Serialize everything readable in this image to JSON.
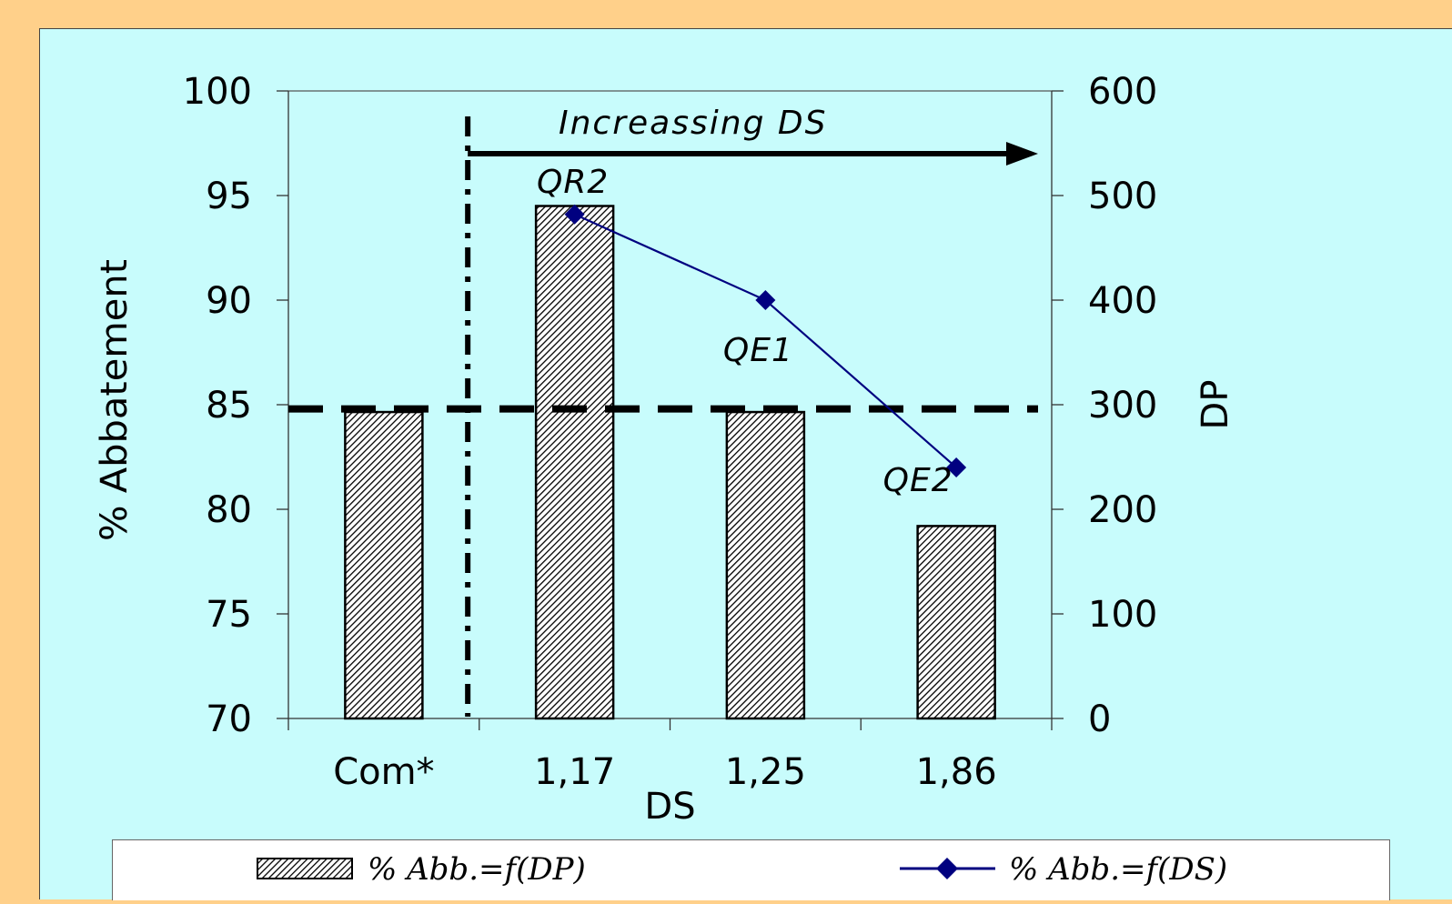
{
  "chart_data": {
    "type": "bar",
    "categories": [
      "Com*",
      "1,17",
      "1,25",
      "1,86"
    ],
    "xlabel": "DS",
    "ylabel": "% Abbatement",
    "y2label": "DP",
    "ylim": [
      70,
      100
    ],
    "yticks": [
      "70",
      "75",
      "80",
      "85",
      "90",
      "95",
      "100"
    ],
    "y2lim": [
      0,
      600
    ],
    "y2ticks": [
      "0",
      "100",
      "200",
      "300",
      "400",
      "500",
      "600"
    ],
    "series": [
      {
        "name": "% Abb.=f(DP)",
        "type": "bar",
        "axis": "right",
        "values": [
          293,
          490,
          293,
          184
        ],
        "pattern": "diagonal-hatch"
      },
      {
        "name": "% Abb.=f(DS)",
        "type": "line",
        "axis": "left",
        "values": [
          null,
          94.1,
          90.0,
          82.0
        ],
        "color": "#000080",
        "marker": "diamond"
      }
    ],
    "reference_line": {
      "axis": "left",
      "value": 84.8,
      "style": "dashed"
    },
    "divider": {
      "between_categories": [
        0,
        1
      ],
      "style": "dash-dot"
    },
    "annotations": [
      {
        "text": "Increassing DS",
        "type": "arrow-label"
      },
      {
        "text": "QR2",
        "category_index": 1
      },
      {
        "text": "QE1",
        "category_index": 2
      },
      {
        "text": "QE2",
        "category_index": 3
      }
    ],
    "legend_placement": "bottom"
  }
}
